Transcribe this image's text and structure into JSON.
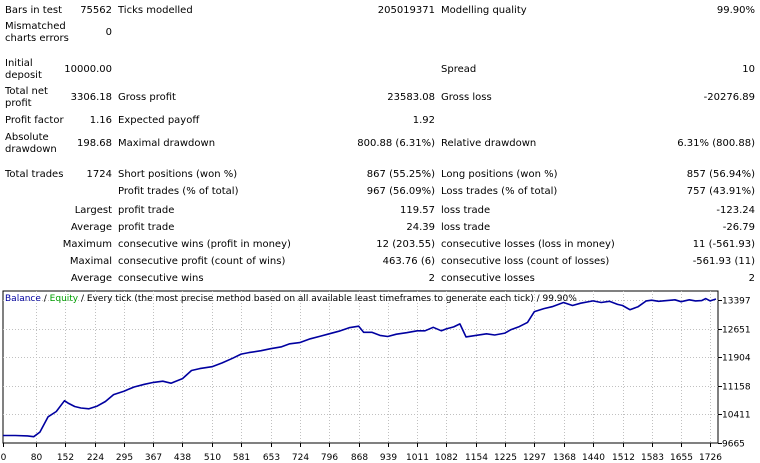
{
  "report": {
    "bars_in_test": {
      "label": "Bars in test",
      "value": "75562"
    },
    "ticks_modelled": {
      "label": "Ticks modelled",
      "value": "205019371"
    },
    "modelling_quality": {
      "label": "Modelling quality",
      "value": "99.90%"
    },
    "mismatched": {
      "label1": "Mismatched",
      "label2": "charts errors",
      "value": "0"
    },
    "initial_deposit": {
      "label1": "Initial",
      "label2": "deposit",
      "value": "10000.00"
    },
    "spread": {
      "label": "Spread",
      "value": "10"
    },
    "total_net_profit": {
      "label1": "Total net",
      "label2": "profit",
      "value": "3306.18"
    },
    "gross_profit": {
      "label": "Gross profit",
      "value": "23583.08"
    },
    "gross_loss": {
      "label": "Gross loss",
      "value": "-20276.89"
    },
    "profit_factor": {
      "label": "Profit factor",
      "value": "1.16"
    },
    "expected_payoff": {
      "label": "Expected payoff",
      "value": "1.92"
    },
    "absolute_drawdown": {
      "label1": "Absolute",
      "label2": "drawdown",
      "value": "198.68"
    },
    "maximal_drawdown": {
      "label": "Maximal drawdown",
      "value": "800.88 (6.31%)"
    },
    "relative_drawdown": {
      "label": "Relative drawdown",
      "value": "6.31% (800.88)"
    },
    "total_trades": {
      "label": "Total trades",
      "value": "1724"
    },
    "short_positions": {
      "label": "Short positions (won %)",
      "value": "867 (55.25%)"
    },
    "long_positions": {
      "label": "Long positions (won %)",
      "value": "857 (56.94%)"
    },
    "profit_trades": {
      "label": "Profit trades (% of total)",
      "value": "967 (56.09%)"
    },
    "loss_trades": {
      "label": "Loss trades (% of total)",
      "value": "757 (43.91%)"
    },
    "largest": {
      "prefix": "Largest",
      "profit_label": "profit trade",
      "profit_value": "119.57",
      "loss_label": "loss trade",
      "loss_value": "-123.24"
    },
    "average": {
      "prefix": "Average",
      "profit_label": "profit trade",
      "profit_value": "24.39",
      "loss_label": "loss trade",
      "loss_value": "-26.79"
    },
    "maximum": {
      "prefix": "Maximum",
      "wins_label": "consecutive wins (profit in money)",
      "wins_value": "12 (203.55)",
      "losses_label": "consecutive losses (loss in money)",
      "losses_value": "11 (-561.93)"
    },
    "maximal": {
      "prefix": "Maximal",
      "profit_label": "consecutive profit (count of wins)",
      "profit_value": "463.76 (6)",
      "loss_label": "consecutive loss (count of losses)",
      "loss_value": "-561.93 (11)"
    },
    "average_consecutive": {
      "prefix": "Average",
      "wins_label": "consecutive wins",
      "wins_value": "2",
      "losses_label": "consecutive losses",
      "losses_value": "2"
    }
  },
  "chart_legend": {
    "balance": "Balance",
    "sep1": " / ",
    "equity": "Equity",
    "rest": " / Every tick (the most precise method based on all available least timeframes to generate each tick) / 99.90%"
  },
  "colors": {
    "balance": "#0000a0",
    "equity": "#00a000",
    "grid": "#c0c0c0"
  },
  "chart_data": {
    "type": "line",
    "title": "Balance / Equity / Every tick (the most precise method based on all available least timeframes to generate each tick) / 99.90%",
    "xlabel": "",
    "ylabel": "",
    "x_ticks": [
      "0",
      "80",
      "152",
      "224",
      "295",
      "367",
      "438",
      "510",
      "581",
      "653",
      "724",
      "796",
      "868",
      "939",
      "1011",
      "1082",
      "1154",
      "1225",
      "1297",
      "1368",
      "1440",
      "1512",
      "1583",
      "1655",
      "1726"
    ],
    "y_ticks": [
      "9665",
      "10411",
      "11158",
      "11904",
      "12651",
      "13397"
    ],
    "xlim": [
      0,
      1745
    ],
    "ylim": [
      9665,
      13640
    ],
    "series": [
      {
        "name": "Balance",
        "x": [
          0,
          30,
          60,
          75,
          90,
          110,
          130,
          150,
          160,
          175,
          190,
          210,
          230,
          250,
          270,
          295,
          320,
          345,
          367,
          390,
          410,
          438,
          460,
          480,
          510,
          535,
          560,
          581,
          600,
          630,
          653,
          680,
          700,
          724,
          750,
          775,
          796,
          820,
          845,
          868,
          880,
          900,
          920,
          939,
          960,
          985,
          1011,
          1030,
          1050,
          1070,
          1082,
          1100,
          1115,
          1130,
          1154,
          1180,
          1200,
          1225,
          1240,
          1260,
          1280,
          1297,
          1320,
          1340,
          1368,
          1390,
          1410,
          1440,
          1460,
          1480,
          1500,
          1512,
          1530,
          1550,
          1570,
          1583,
          1600,
          1620,
          1640,
          1655,
          1675,
          1690,
          1705,
          1715,
          1726,
          1740
        ],
        "y": [
          9860,
          9860,
          9850,
          9830,
          9950,
          10350,
          10490,
          10770,
          10700,
          10620,
          10580,
          10560,
          10630,
          10750,
          10930,
          11020,
          11130,
          11200,
          11250,
          11280,
          11230,
          11350,
          11560,
          11610,
          11660,
          11760,
          11880,
          11990,
          12030,
          12080,
          12130,
          12180,
          12260,
          12290,
          12390,
          12460,
          12520,
          12590,
          12680,
          12720,
          12560,
          12560,
          12480,
          12450,
          12510,
          12550,
          12600,
          12600,
          12690,
          12600,
          12650,
          12700,
          12780,
          12440,
          12480,
          12520,
          12490,
          12540,
          12630,
          12710,
          12820,
          13100,
          13180,
          13230,
          13340,
          13260,
          13320,
          13380,
          13340,
          13370,
          13290,
          13260,
          13150,
          13230,
          13380,
          13400,
          13370,
          13390,
          13410,
          13360,
          13410,
          13380,
          13390,
          13440,
          13380,
          13430
        ]
      }
    ]
  }
}
